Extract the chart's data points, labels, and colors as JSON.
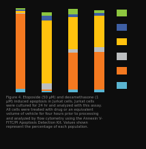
{
  "bars": [
    {
      "segments": [
        {
          "color": "#5ab4d0",
          "value": 4.0
        },
        {
          "color": "#f47920",
          "value": 87.0
        },
        {
          "color": "#bcbec0",
          "value": 1.0
        },
        {
          "color": "#ffc20e",
          "value": 2.0
        },
        {
          "color": "#3e5fa3",
          "value": 1.5
        },
        {
          "color": "#8dc63f",
          "value": 2.0
        }
      ]
    },
    {
      "segments": [
        {
          "color": "#5ab4d0",
          "value": 1.5
        },
        {
          "color": "#f47920",
          "value": 2.0
        },
        {
          "color": "#bcbec0",
          "value": 7.0
        },
        {
          "color": "#ffc20e",
          "value": 73.0
        },
        {
          "color": "#3e5fa3",
          "value": 5.5
        },
        {
          "color": "#8dc63f",
          "value": 3.5
        }
      ]
    },
    {
      "segments": [
        {
          "color": "#5ab4d0",
          "value": 3.0
        },
        {
          "color": "#f47920",
          "value": 43.0
        },
        {
          "color": "#bcbec0",
          "value": 4.0
        },
        {
          "color": "#ffc20e",
          "value": 37.0
        },
        {
          "color": "#3e5fa3",
          "value": 3.0
        },
        {
          "color": "#8dc63f",
          "value": 7.0
        }
      ]
    },
    {
      "segments": [
        {
          "color": "#5ab4d0",
          "value": 3.0
        },
        {
          "color": "#f47920",
          "value": 44.0
        },
        {
          "color": "#bcbec0",
          "value": 5.0
        },
        {
          "color": "#ffc20e",
          "value": 37.0
        },
        {
          "color": "#3e5fa3",
          "value": 3.0
        },
        {
          "color": "#8dc63f",
          "value": 3.0
        }
      ]
    }
  ],
  "legend_colors": [
    "#8dc63f",
    "#3e5fa3",
    "#ffc20e",
    "#bcbec0",
    "#f47920",
    "#5ab4d0"
  ],
  "background_color": "#0d0d0d",
  "bar_width": 0.38,
  "x_positions": [
    0,
    1,
    2,
    3
  ],
  "ylim": [
    0,
    100
  ],
  "caption": "Figure 4. Etoposide (50 μM) and dexamethasone (1\nμM) induced apoptosis in Jurkat cells. Jurkat cells\nwere cultured for 24 hr and analyzed with this assay.\nAll cells were treated with drug or an equivalent\nvolume of vehicle for four hours prior to processing\nand analyzed by flow cytometry using the Annexin V-\nFITC/PI Apoptosis Detection Kit. Values shown\nrepresent the percentage of each population.",
  "caption_fontsize": 3.8,
  "caption_color": "#888888"
}
